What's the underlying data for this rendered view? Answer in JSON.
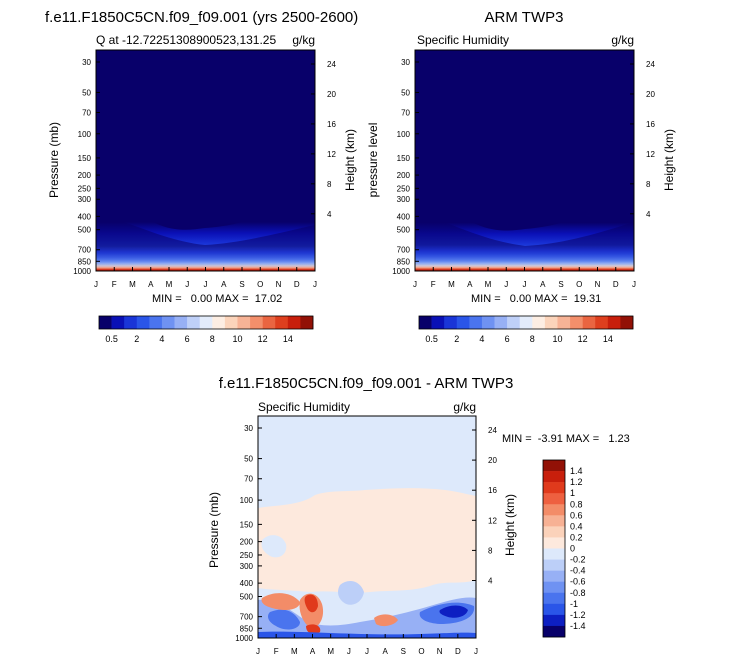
{
  "chart_data": [
    {
      "type": "heatmap",
      "main_title": "f.e11.F1850C5CN.f09_f09.001 (yrs 2500-2600)",
      "left_title": "Q at -12.72251308900523,131.25",
      "units": "g/kg",
      "ylabel": "Pressure (mb)",
      "ylabel_right": "Height (km)",
      "x_ticks": [
        "J",
        "F",
        "M",
        "A",
        "M",
        "J",
        "J",
        "A",
        "S",
        "O",
        "N",
        "D",
        "J"
      ],
      "y_ticks": [
        "30",
        "50",
        "70",
        "100",
        "150",
        "200",
        "250",
        "300",
        "400",
        "500",
        "700",
        "850",
        "1000"
      ],
      "y_ticks_right": [
        "24",
        "20",
        "16",
        "12",
        "8",
        "4"
      ],
      "stats": "MIN =   0.00 MAX =  17.02",
      "min": 0.0,
      "max": 17.02
    },
    {
      "type": "heatmap",
      "main_title": "ARM TWP3",
      "left_title": "Specific Humidity",
      "units": "g/kg",
      "ylabel": "pressure level",
      "ylabel_right": "Height (km)",
      "x_ticks": [
        "J",
        "F",
        "M",
        "A",
        "M",
        "J",
        "J",
        "A",
        "S",
        "O",
        "N",
        "D",
        "J"
      ],
      "y_ticks": [
        "30",
        "50",
        "70",
        "100",
        "150",
        "200",
        "250",
        "300",
        "400",
        "500",
        "700",
        "850",
        "1000"
      ],
      "y_ticks_right": [
        "24",
        "20",
        "16",
        "12",
        "8",
        "4"
      ],
      "stats": "MIN =   0.00 MAX =  19.31",
      "min": 0.0,
      "max": 19.31
    },
    {
      "type": "heatmap",
      "main_title": "f.e11.F1850C5CN.f09_f09.001 - ARM TWP3",
      "left_title": "Specific Humidity",
      "units": "g/kg",
      "ylabel": "Pressure (mb)",
      "ylabel_right": "Height (km)",
      "x_ticks": [
        "J",
        "F",
        "M",
        "A",
        "M",
        "J",
        "J",
        "A",
        "S",
        "O",
        "N",
        "D",
        "J"
      ],
      "y_ticks": [
        "30",
        "50",
        "70",
        "100",
        "150",
        "200",
        "250",
        "300",
        "400",
        "500",
        "700",
        "850",
        "1000"
      ],
      "y_ticks_right": [
        "24",
        "20",
        "16",
        "12",
        "8",
        "4"
      ],
      "stats": "MIN =  -3.91 MAX =   1.23",
      "min": -3.91,
      "max": 1.23
    }
  ],
  "colorbars": {
    "horizontal_labels": [
      "0.5",
      "2",
      "4",
      "6",
      "8",
      "10",
      "12",
      "14"
    ],
    "horizontal_colors": [
      "#08006a",
      "#0a10b6",
      "#1a35d8",
      "#2a55e8",
      "#4a74ee",
      "#6f92f2",
      "#97b0f5",
      "#bfd0f8",
      "#e3ecfb",
      "#fdeee3",
      "#fbd4bb",
      "#f7b396",
      "#f38f6b",
      "#ea6541",
      "#de3f1e",
      "#c81f0c",
      "#921106"
    ],
    "vertical_labels": [
      "1.4",
      "1.2",
      "1",
      "0.8",
      "0.6",
      "0.4",
      "0.2",
      "0",
      "-0.2",
      "-0.4",
      "-0.6",
      "-0.8",
      "-1",
      "-1.2",
      "-1.4"
    ],
    "vertical_colors": [
      "#921106",
      "#c81f0c",
      "#e03a1c",
      "#ee6040",
      "#f38c68",
      "#f7b194",
      "#fbd2ba",
      "#fde9dd",
      "#dde9fb",
      "#bccff8",
      "#97b0f5",
      "#6f92f2",
      "#4a74ee",
      "#2a55e8",
      "#0d1fc2",
      "#08006a"
    ]
  }
}
